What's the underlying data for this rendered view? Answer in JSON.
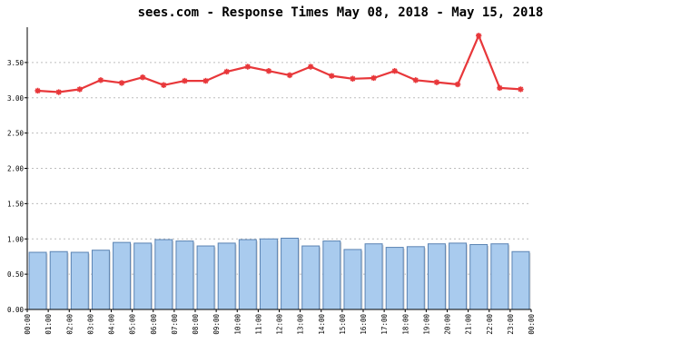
{
  "chart_data": {
    "type": "bar",
    "title": "sees.com - Response Times May 08, 2018 - May 15, 2018",
    "categories": [
      "00:00",
      "01:00",
      "02:00",
      "03:00",
      "04:00",
      "05:00",
      "06:00",
      "07:00",
      "08:00",
      "09:00",
      "10:00",
      "11:00",
      "12:00",
      "13:00",
      "14:00",
      "15:00",
      "16:00",
      "17:00",
      "18:00",
      "19:00",
      "20:00",
      "21:00",
      "22:00",
      "23:00"
    ],
    "x_end_label": "00:00",
    "ylim": [
      0,
      4.0
    ],
    "y_ticks": [
      "0.00",
      "0.50",
      "1.00",
      "1.50",
      "2.00",
      "2.50",
      "3.00",
      "3.50"
    ],
    "grid": true,
    "series": [
      {
        "kind": "bar",
        "color": "#a9cbee",
        "edge_color": "#5a83b3",
        "values": [
          0.81,
          0.82,
          0.81,
          0.84,
          0.95,
          0.94,
          0.99,
          0.97,
          0.9,
          0.94,
          0.99,
          1.0,
          1.01,
          0.9,
          0.97,
          0.85,
          0.93,
          0.88,
          0.89,
          0.93,
          0.94,
          0.92,
          0.93,
          0.82
        ]
      },
      {
        "kind": "line",
        "color": "#e8373a",
        "values": [
          3.1,
          3.08,
          3.12,
          3.25,
          3.21,
          3.29,
          3.18,
          3.24,
          3.24,
          3.37,
          3.44,
          3.38,
          3.32,
          3.44,
          3.31,
          3.27,
          3.28,
          3.38,
          3.25,
          3.22,
          3.19,
          3.88,
          3.14,
          3.12
        ]
      }
    ]
  }
}
